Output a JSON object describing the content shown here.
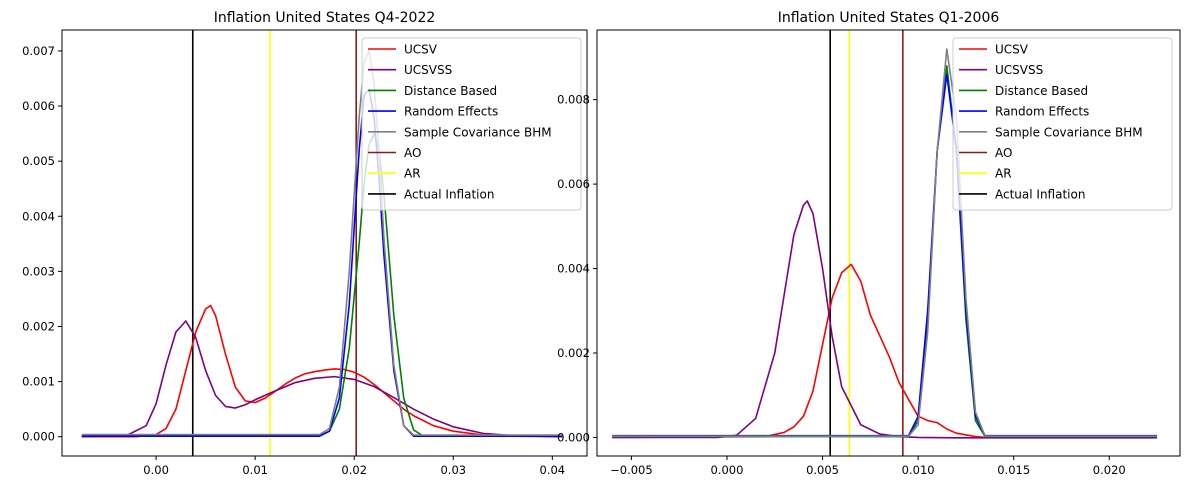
{
  "chart_data": [
    {
      "type": "line",
      "title": "Inflation United States Q4-2022",
      "xlabel": "",
      "ylabel": "",
      "xlim": [
        -0.0095,
        0.0435
      ],
      "ylim": [
        -0.00035,
        0.00738
      ],
      "xticks": [
        0.0,
        0.01,
        0.02,
        0.03,
        0.04
      ],
      "xtick_labels": [
        "0.00",
        "0.01",
        "0.02",
        "0.03",
        "0.04"
      ],
      "yticks": [
        0.0,
        0.001,
        0.002,
        0.003,
        0.004,
        0.005,
        0.006,
        0.007
      ],
      "ytick_labels": [
        "0.000",
        "0.001",
        "0.002",
        "0.003",
        "0.004",
        "0.005",
        "0.006",
        "0.007"
      ],
      "legend_position": "top-right",
      "grid": false,
      "series": [
        {
          "name": "UCSV",
          "color": "#ff0000",
          "x": [
            -0.0075,
            -0.002,
            0.0,
            0.001,
            0.002,
            0.003,
            0.004,
            0.005,
            0.0055,
            0.006,
            0.007,
            0.008,
            0.009,
            0.01,
            0.011,
            0.012,
            0.013,
            0.014,
            0.015,
            0.016,
            0.017,
            0.018,
            0.019,
            0.02,
            0.021,
            0.022,
            0.023,
            0.024,
            0.025,
            0.026,
            0.028,
            0.03,
            0.033,
            0.036,
            0.041
          ],
          "y": [
            0.0,
            0.0,
            4e-05,
            0.00015,
            0.0005,
            0.0012,
            0.0019,
            0.00232,
            0.00238,
            0.0022,
            0.0015,
            0.0009,
            0.00065,
            0.00062,
            0.0007,
            0.00082,
            0.00095,
            0.00106,
            0.00114,
            0.00118,
            0.00121,
            0.00123,
            0.00122,
            0.00117,
            0.00108,
            0.00095,
            0.0008,
            0.00065,
            0.0005,
            0.00038,
            0.0002,
            0.0001,
            3e-05,
            1e-05,
            0.0
          ]
        },
        {
          "name": "UCSVSS",
          "color": "#800080",
          "x": [
            -0.0075,
            -0.003,
            -0.001,
            0.0,
            0.001,
            0.002,
            0.003,
            0.004,
            0.005,
            0.006,
            0.007,
            0.008,
            0.009,
            0.01,
            0.012,
            0.014,
            0.016,
            0.018,
            0.02,
            0.022,
            0.024,
            0.026,
            0.028,
            0.03,
            0.033,
            0.036,
            0.041
          ],
          "y": [
            0.0,
            2e-05,
            0.0002,
            0.0006,
            0.0013,
            0.0019,
            0.0021,
            0.0018,
            0.0012,
            0.00075,
            0.00055,
            0.00052,
            0.00058,
            0.00067,
            0.00083,
            0.00098,
            0.00106,
            0.00109,
            0.00104,
            0.00091,
            0.00071,
            0.0005,
            0.00032,
            0.00018,
            6e-05,
            2e-05,
            0.0
          ]
        },
        {
          "name": "Distance Based",
          "color": "#008000",
          "x": [
            -0.0075,
            0.0165,
            0.0175,
            0.0185,
            0.0195,
            0.0205,
            0.021,
            0.0215,
            0.022,
            0.0225,
            0.023,
            0.0235,
            0.024,
            0.025,
            0.026,
            0.027,
            0.041
          ],
          "y": [
            2e-05,
            2e-05,
            0.0001,
            0.0005,
            0.0016,
            0.0035,
            0.0046,
            0.0053,
            0.0055,
            0.0052,
            0.0044,
            0.0033,
            0.0022,
            0.0007,
            0.00012,
            1e-05,
            1e-05
          ]
        },
        {
          "name": "Random Effects",
          "color": "#0000ff",
          "x": [
            -0.0075,
            0.0165,
            0.0175,
            0.0185,
            0.0195,
            0.0205,
            0.021,
            0.0215,
            0.022,
            0.0225,
            0.023,
            0.024,
            0.025,
            0.026,
            0.041
          ],
          "y": [
            1e-05,
            1e-05,
            0.0001,
            0.0007,
            0.0024,
            0.0052,
            0.0062,
            0.0063,
            0.0058,
            0.0047,
            0.0033,
            0.0012,
            0.0002,
            1e-05,
            1e-05
          ]
        },
        {
          "name": "Sample Covariance BHM",
          "color": "#808080",
          "x": [
            -0.0075,
            0.0165,
            0.0175,
            0.0185,
            0.0195,
            0.0205,
            0.021,
            0.0215,
            0.022,
            0.0225,
            0.023,
            0.024,
            0.025,
            0.026,
            0.041
          ],
          "y": [
            4e-05,
            4e-05,
            0.00015,
            0.0009,
            0.003,
            0.0058,
            0.0068,
            0.007,
            0.0064,
            0.0052,
            0.0036,
            0.0013,
            0.0002,
            3e-05,
            3e-05
          ]
        },
        {
          "name": "AO",
          "color": "#8b1a1a",
          "vline": 0.0202
        },
        {
          "name": "AR",
          "color": "#ffff00",
          "vline": 0.0115
        },
        {
          "name": "Actual Inflation",
          "color": "#000000",
          "vline": 0.0037
        }
      ]
    },
    {
      "type": "line",
      "title": "Inflation United States Q1-2006",
      "xlabel": "",
      "ylabel": "",
      "xlim": [
        -0.0068,
        0.0237
      ],
      "ylim": [
        -0.00044,
        0.00965
      ],
      "xticks": [
        -0.005,
        0.0,
        0.005,
        0.01,
        0.015,
        0.02
      ],
      "xtick_labels": [
        "−0.005",
        "0.000",
        "0.005",
        "0.010",
        "0.015",
        "0.020"
      ],
      "yticks": [
        0.0,
        0.002,
        0.004,
        0.006,
        0.008
      ],
      "ytick_labels": [
        "0.000",
        "0.002",
        "0.004",
        "0.006",
        "0.008"
      ],
      "legend_position": "top-right",
      "grid": false,
      "series": [
        {
          "name": "UCSV",
          "color": "#ff0000",
          "x": [
            -0.006,
            0.002,
            0.003,
            0.0035,
            0.004,
            0.0045,
            0.005,
            0.0055,
            0.006,
            0.0065,
            0.007,
            0.0075,
            0.008,
            0.0085,
            0.009,
            0.0095,
            0.01,
            0.0105,
            0.011,
            0.0115,
            0.012,
            0.013,
            0.0135,
            0.0225
          ],
          "y": [
            0.0,
            2e-05,
            0.00012,
            0.00025,
            0.0005,
            0.0011,
            0.0022,
            0.0033,
            0.0039,
            0.0041,
            0.0037,
            0.0029,
            0.0024,
            0.0019,
            0.0013,
            0.0009,
            0.0005,
            0.0004,
            0.00035,
            0.0002,
            0.0001,
            2e-05,
            0.0,
            0.0
          ]
        },
        {
          "name": "UCSVSS",
          "color": "#800080",
          "x": [
            -0.006,
            -0.0005,
            0.0005,
            0.0015,
            0.0025,
            0.003,
            0.0035,
            0.004,
            0.0042,
            0.0045,
            0.005,
            0.0055,
            0.006,
            0.007,
            0.008,
            0.009,
            0.01,
            0.012,
            0.0225
          ],
          "y": [
            0.0,
            0.0,
            5e-05,
            0.00045,
            0.002,
            0.0034,
            0.0048,
            0.0055,
            0.0056,
            0.0053,
            0.004,
            0.0024,
            0.0012,
            0.0003,
            8e-05,
            2e-05,
            0.0,
            -1e-05,
            -1e-05
          ]
        },
        {
          "name": "Distance Based",
          "color": "#008000",
          "x": [
            -0.006,
            0.0095,
            0.01,
            0.0105,
            0.011,
            0.0115,
            0.012,
            0.0125,
            0.013,
            0.0135,
            0.0225
          ],
          "y": [
            2e-05,
            2e-05,
            0.0004,
            0.0028,
            0.0068,
            0.0088,
            0.0068,
            0.0028,
            0.0004,
            2e-05,
            2e-05
          ]
        },
        {
          "name": "Random Effects",
          "color": "#0000ff",
          "x": [
            -0.006,
            0.0095,
            0.01,
            0.0105,
            0.011,
            0.0115,
            0.012,
            0.0125,
            0.013,
            0.0135,
            0.0225
          ],
          "y": [
            4e-05,
            4e-05,
            0.0005,
            0.003,
            0.0068,
            0.0086,
            0.0068,
            0.003,
            0.0005,
            4e-05,
            4e-05
          ]
        },
        {
          "name": "Sample Covariance BHM",
          "color": "#808080",
          "x": [
            -0.006,
            0.0095,
            0.01,
            0.0105,
            0.011,
            0.0115,
            0.012,
            0.0125,
            0.013,
            0.0135,
            0.0225
          ],
          "y": [
            3e-05,
            3e-05,
            0.0003,
            0.0025,
            0.0068,
            0.0092,
            0.0076,
            0.0033,
            0.0006,
            3e-05,
            3e-05
          ]
        },
        {
          "name": "AO",
          "color": "#8b1a1a",
          "vline": 0.0092
        },
        {
          "name": "AR",
          "color": "#ffff00",
          "vline": 0.0064
        },
        {
          "name": "Actual Inflation",
          "color": "#000000",
          "vline": 0.0054
        }
      ]
    }
  ]
}
